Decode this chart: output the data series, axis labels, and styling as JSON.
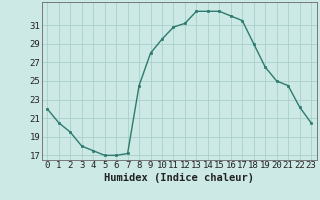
{
  "x": [
    0,
    1,
    2,
    3,
    4,
    5,
    6,
    7,
    8,
    9,
    10,
    11,
    12,
    13,
    14,
    15,
    16,
    17,
    18,
    19,
    20,
    21,
    22,
    23
  ],
  "y": [
    22.0,
    20.5,
    19.5,
    18.0,
    17.5,
    17.0,
    17.0,
    17.2,
    24.5,
    28.0,
    29.5,
    30.8,
    31.2,
    32.5,
    32.5,
    32.5,
    32.0,
    31.5,
    29.0,
    26.5,
    25.0,
    24.5,
    22.2,
    20.5
  ],
  "line_color": "#2d7a6e",
  "marker_color": "#2d7a6e",
  "bg_color": "#cce9e5",
  "grid_color": "#aacfcb",
  "axis_color": "#555555",
  "xlabel": "Humidex (Indice chaleur)",
  "xlim": [
    -0.5,
    23.5
  ],
  "ylim": [
    16.5,
    33.5
  ],
  "yticks": [
    17,
    19,
    21,
    23,
    25,
    27,
    29,
    31
  ],
  "fontsize_xlabel": 7.5,
  "fontsize_ticks": 6.5
}
